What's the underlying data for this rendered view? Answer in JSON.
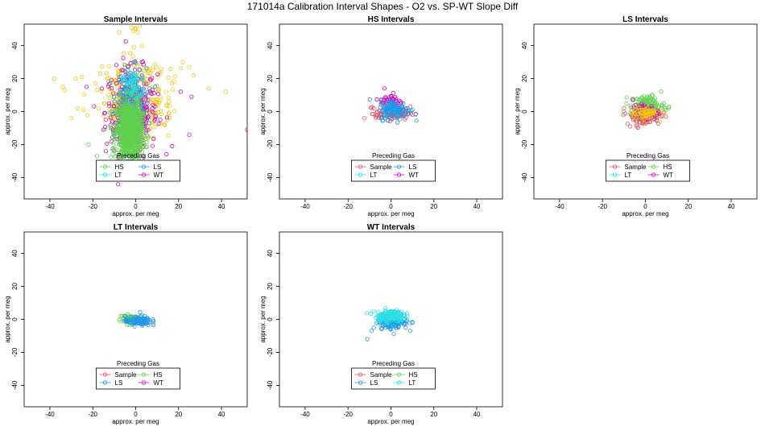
{
  "figure_title": "171014a   Calibration Interval Shapes - O2 vs. SP-WT Slope Diff",
  "colors": {
    "Sample": "#df536b",
    "HS": "#61d04f",
    "LS": "#2297e6",
    "LT": "#28e2e5",
    "WT": "#cd0bbc",
    "Sample_intervals_extra": "#f5c710"
  },
  "chart_data": [
    {
      "type": "scatter",
      "title": "Sample Intervals",
      "xlabel": "approx. per meg",
      "ylabel": "approx. per meg",
      "xlim": [
        -52,
        52
      ],
      "ylim": [
        -53,
        53
      ],
      "x_ticks": [
        -40,
        -20,
        0,
        20,
        40
      ],
      "y_ticks": [
        -40,
        -20,
        0,
        20,
        40
      ],
      "legend": {
        "title": "Preceding Gas",
        "placement": "bottom-center",
        "entries": [
          "HS",
          "LS",
          "LT",
          "WT"
        ],
        "entry_colors": [
          "#61d04f",
          "#2297e6",
          "#28e2e5",
          "#cd0bbc"
        ]
      },
      "clusters": [
        {
          "name": "cloud-yellow",
          "color": "#f5c710",
          "count": 320,
          "cx": 0,
          "cy": 8,
          "sx": 8,
          "sy": 12
        },
        {
          "name": "cloud-magenta",
          "color": "#cd0bbc",
          "count": 330,
          "cx": -2,
          "cy": 0,
          "sx": 6,
          "sy": 13
        },
        {
          "name": "cloud-blue",
          "color": "#2297e6",
          "count": 180,
          "cx": -2,
          "cy": 8,
          "sx": 3.5,
          "sy": 9
        },
        {
          "name": "cloud-cyan",
          "color": "#28e2e5",
          "count": 60,
          "cx": -1,
          "cy": 12,
          "sx": 3,
          "sy": 7
        },
        {
          "name": "cloud-green",
          "color": "#61d04f",
          "count": 900,
          "cx": -3,
          "cy": -12,
          "sx": 3,
          "sy": 9
        }
      ],
      "points": [
        {
          "x": -2,
          "y": 51,
          "color": "#f5c710"
        },
        {
          "x": 0,
          "y": 50,
          "color": "#f5c710"
        },
        {
          "x": 2,
          "y": 52,
          "color": "#f5c710"
        },
        {
          "x": -1,
          "y": 49,
          "color": "#f5c710"
        },
        {
          "x": 1,
          "y": 48,
          "color": "#f5c710"
        },
        {
          "x": -38,
          "y": 20,
          "color": "#f5c710"
        },
        {
          "x": -34,
          "y": 15,
          "color": "#f5c710"
        },
        {
          "x": -33,
          "y": 13,
          "color": "#f5c710"
        },
        {
          "x": -28,
          "y": 20,
          "color": "#f5c710"
        },
        {
          "x": -25,
          "y": 21,
          "color": "#f5c710"
        },
        {
          "x": -27,
          "y": 2,
          "color": "#f5c710"
        },
        {
          "x": -30,
          "y": -4,
          "color": "#f5c710"
        },
        {
          "x": 25,
          "y": 27,
          "color": "#f5c710"
        },
        {
          "x": 27,
          "y": 22,
          "color": "#f5c710"
        },
        {
          "x": 34,
          "y": 14,
          "color": "#f5c710"
        },
        {
          "x": 42,
          "y": 12,
          "color": "#f5c710"
        },
        {
          "x": 22,
          "y": 30,
          "color": "#f5c710"
        },
        {
          "x": 52,
          "y": -11,
          "color": "#cd0bbc"
        },
        {
          "x": 26,
          "y": 9,
          "color": "#cd0bbc"
        },
        {
          "x": 25,
          "y": -14,
          "color": "#cd0bbc"
        },
        {
          "x": 21,
          "y": 12,
          "color": "#cd0bbc"
        },
        {
          "x": 17,
          "y": -21,
          "color": "#cd0bbc"
        },
        {
          "x": -22,
          "y": -20,
          "color": "#61d04f"
        },
        {
          "x": -18,
          "y": -27,
          "color": "#61d04f"
        }
      ]
    },
    {
      "type": "scatter",
      "title": "HS Intervals",
      "xlabel": "approx. per meg",
      "ylabel": "approx. per meg",
      "xlim": [
        -52,
        52
      ],
      "ylim": [
        -53,
        53
      ],
      "x_ticks": [
        -40,
        -20,
        0,
        20,
        40
      ],
      "y_ticks": [
        -40,
        -20,
        0,
        20,
        40
      ],
      "legend": {
        "title": "Preceding Gas",
        "placement": "bottom-center",
        "entries": [
          "Sample",
          "LS",
          "LT",
          "WT"
        ],
        "entry_colors": [
          "#df536b",
          "#2297e6",
          "#28e2e5",
          "#cd0bbc"
        ]
      },
      "clusters": [
        {
          "name": "cloud-red",
          "color": "#df536b",
          "count": 120,
          "cx": 1,
          "cy": -1,
          "sx": 4,
          "sy": 2
        },
        {
          "name": "cloud-magenta",
          "color": "#cd0bbc",
          "count": 50,
          "cx": 0,
          "cy": 6,
          "sx": 2.5,
          "sy": 2.5
        },
        {
          "name": "cloud-cyan",
          "color": "#28e2e5",
          "count": 40,
          "cx": 0,
          "cy": 2,
          "sx": 2.5,
          "sy": 2
        },
        {
          "name": "cloud-blue",
          "color": "#2297e6",
          "count": 110,
          "cx": 2,
          "cy": 1,
          "sx": 3.5,
          "sy": 3
        }
      ],
      "points": [
        {
          "x": -8,
          "y": 2,
          "color": "#df536b"
        },
        {
          "x": 10,
          "y": 1,
          "color": "#2297e6"
        },
        {
          "x": -7,
          "y": -2,
          "color": "#df536b"
        },
        {
          "x": -3,
          "y": 14,
          "color": "#cd0bbc"
        }
      ]
    },
    {
      "type": "scatter",
      "title": "LS Intervals",
      "xlabel": "approx. per meg",
      "ylabel": "approx. per meg",
      "xlim": [
        -52,
        52
      ],
      "ylim": [
        -53,
        53
      ],
      "x_ticks": [
        -40,
        -20,
        0,
        20,
        40
      ],
      "y_ticks": [
        -40,
        -20,
        0,
        20,
        40
      ],
      "legend": {
        "title": "Preceding Gas",
        "placement": "bottom-center",
        "entries": [
          "Sample",
          "HS",
          "LT",
          "WT"
        ],
        "entry_colors": [
          "#df536b",
          "#61d04f",
          "#28e2e5",
          "#cd0bbc"
        ]
      },
      "clusters": [
        {
          "name": "cloud-red",
          "color": "#df536b",
          "count": 110,
          "cx": -1,
          "cy": -3,
          "sx": 4,
          "sy": 2.5
        },
        {
          "name": "cloud-green",
          "color": "#61d04f",
          "count": 110,
          "cx": 1,
          "cy": 4,
          "sx": 4,
          "sy": 3
        },
        {
          "name": "cloud-magenta",
          "color": "#cd0bbc",
          "count": 50,
          "cx": 0,
          "cy": 0,
          "sx": 3,
          "sy": 2
        },
        {
          "name": "cloud-yellow",
          "color": "#f5c710",
          "count": 60,
          "cx": 0,
          "cy": -1,
          "sx": 3,
          "sy": 2
        }
      ],
      "points": [
        {
          "x": -10,
          "y": 2,
          "color": "#df536b"
        },
        {
          "x": 11,
          "y": 3,
          "color": "#61d04f"
        },
        {
          "x": -4,
          "y": -9,
          "color": "#df536b"
        }
      ]
    },
    {
      "type": "scatter",
      "title": "LT Intervals",
      "xlabel": "approx. per meg",
      "ylabel": "approx. per meg",
      "xlim": [
        -52,
        52
      ],
      "ylim": [
        -53,
        53
      ],
      "x_ticks": [
        -40,
        -20,
        0,
        20,
        40
      ],
      "y_ticks": [
        -40,
        -20,
        0,
        20,
        40
      ],
      "legend": {
        "title": "Preceding Gas",
        "placement": "bottom-center",
        "entries": [
          "Sample",
          "HS",
          "LS",
          "WT"
        ],
        "entry_colors": [
          "#df536b",
          "#61d04f",
          "#2297e6",
          "#cd0bbc"
        ]
      },
      "clusters": [
        {
          "name": "cloud-green",
          "color": "#61d04f",
          "count": 80,
          "cx": -2,
          "cy": 0,
          "sx": 2.5,
          "sy": 1.5
        },
        {
          "name": "cloud-blue",
          "color": "#2297e6",
          "count": 90,
          "cx": 1,
          "cy": -1,
          "sx": 3,
          "sy": 1.5
        }
      ],
      "points": [
        {
          "x": -7,
          "y": 2,
          "color": "#61d04f"
        },
        {
          "x": 8,
          "y": 0,
          "color": "#2297e6"
        }
      ]
    },
    {
      "type": "scatter",
      "title": "WT Intervals",
      "xlabel": "approx. per meg",
      "ylabel": "approx. per meg",
      "xlim": [
        -52,
        52
      ],
      "ylim": [
        -53,
        53
      ],
      "x_ticks": [
        -40,
        -20,
        0,
        20,
        40
      ],
      "y_ticks": [
        -40,
        -20,
        0,
        20,
        40
      ],
      "legend": {
        "title": "Preceding Gas",
        "placement": "bottom-center",
        "entries": [
          "Sample",
          "HS",
          "LS",
          "LT"
        ],
        "entry_colors": [
          "#df536b",
          "#61d04f",
          "#2297e6",
          "#28e2e5"
        ]
      },
      "clusters": [
        {
          "name": "cloud-blue",
          "color": "#2297e6",
          "count": 140,
          "cx": 1,
          "cy": -1,
          "sx": 3.5,
          "sy": 2.5
        },
        {
          "name": "cloud-cyan",
          "color": "#28e2e5",
          "count": 120,
          "cx": -1,
          "cy": 2,
          "sx": 3.5,
          "sy": 2
        }
      ],
      "points": [
        {
          "x": -11,
          "y": -12,
          "color": "#2297e6"
        },
        {
          "x": -9,
          "y": -7,
          "color": "#2297e6"
        },
        {
          "x": -8,
          "y": -5,
          "color": "#2297e6"
        },
        {
          "x": 9,
          "y": -7,
          "color": "#2297e6"
        },
        {
          "x": 10,
          "y": -2,
          "color": "#2297e6"
        }
      ]
    }
  ]
}
